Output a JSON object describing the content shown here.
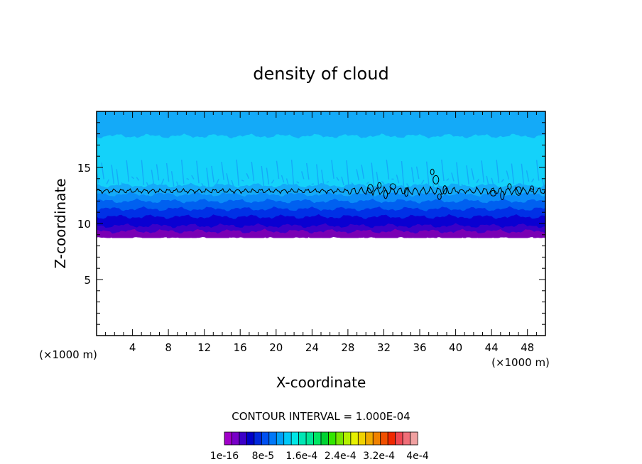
{
  "chart_data": {
    "type": "heatmap",
    "title": "density of cloud",
    "xlabel": "X-coordinate",
    "ylabel": "Z-coordinate",
    "x_units_left": "(×1000 m)",
    "x_units_right": "(×1000 m)",
    "xlim": [
      0,
      50
    ],
    "ylim": [
      0,
      20
    ],
    "x_ticks": [
      4,
      8,
      12,
      16,
      20,
      24,
      28,
      32,
      36,
      40,
      44,
      48
    ],
    "y_ticks": [
      5,
      10,
      15
    ],
    "field": {
      "cloud_base_z": 8.7,
      "cloud_top_z": 20,
      "contour_line_z": 12.9,
      "bands": [
        {
          "z0": 8.7,
          "z1": 9.3,
          "color": "#7a00b4"
        },
        {
          "z0": 9.3,
          "z1": 9.8,
          "color": "#3a00c8"
        },
        {
          "z0": 9.8,
          "z1": 10.6,
          "color": "#0a00d2"
        },
        {
          "z0": 10.6,
          "z1": 11.3,
          "color": "#0030e6"
        },
        {
          "z0": 11.3,
          "z1": 12.0,
          "color": "#0060f0"
        },
        {
          "z0": 12.0,
          "z1": 12.6,
          "color": "#0a8cf8"
        },
        {
          "z0": 12.6,
          "z1": 13.4,
          "color": "#14aaf8"
        },
        {
          "z0": 13.4,
          "z1": 17.8,
          "color": "#14d2fa"
        },
        {
          "z0": 17.8,
          "z1": 20.0,
          "color": "#14aaf8"
        }
      ]
    },
    "contour_interval_label": "CONTOUR INTERVAL = 1.000E-04",
    "colorbar": {
      "colors": [
        "#a000c8",
        "#7800c8",
        "#3c00c8",
        "#0000c8",
        "#0028dc",
        "#0050f0",
        "#0078f8",
        "#00a0f8",
        "#00c8f8",
        "#00e6e6",
        "#00e6b4",
        "#00e696",
        "#00e664",
        "#00d232",
        "#32e600",
        "#78e600",
        "#b4f000",
        "#e6f000",
        "#f0d200",
        "#f0aa00",
        "#f08200",
        "#f05000",
        "#f02800",
        "#f04650",
        "#f06e78",
        "#f0a0a0"
      ],
      "labels": [
        "1e-16",
        "8e-5",
        "1.6e-4",
        "2.4e-4",
        "3.2e-4",
        "4e-4"
      ]
    }
  }
}
